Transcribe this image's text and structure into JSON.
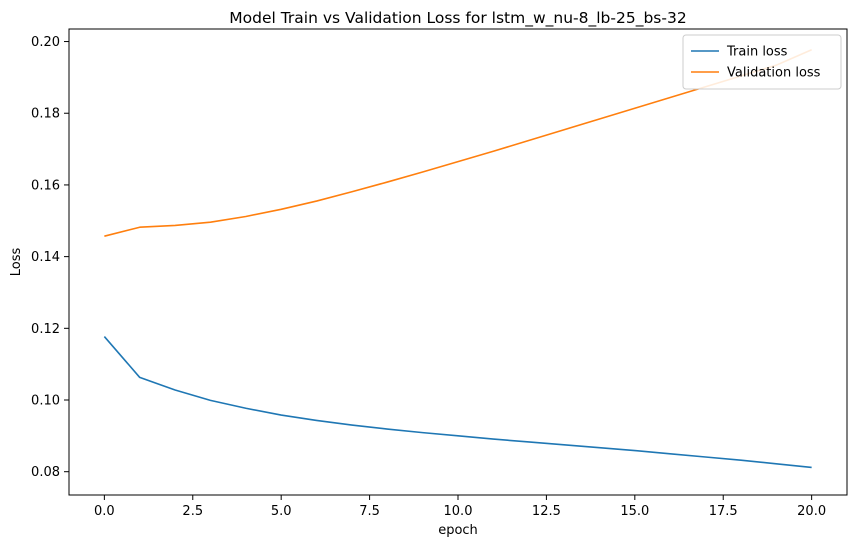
{
  "chart_data": {
    "type": "line",
    "title": "Model Train vs Validation Loss for lstm_w_nu-8_lb-25_bs-32",
    "xlabel": "epoch",
    "ylabel": "Loss",
    "xlim": [
      -1.0,
      21.0
    ],
    "ylim": [
      0.0735,
      0.2035
    ],
    "xticks": [
      0.0,
      2.5,
      5.0,
      7.5,
      10.0,
      12.5,
      15.0,
      17.5,
      20.0
    ],
    "xtick_labels": [
      "0.0",
      "2.5",
      "5.0",
      "7.5",
      "10.0",
      "12.5",
      "15.0",
      "17.5",
      "20.0"
    ],
    "yticks": [
      0.08,
      0.1,
      0.12,
      0.14,
      0.16,
      0.18,
      0.2
    ],
    "ytick_labels": [
      "0.08",
      "0.10",
      "0.12",
      "0.14",
      "0.16",
      "0.18",
      "0.20"
    ],
    "grid": false,
    "legend": "top-right",
    "x": [
      0,
      1,
      2,
      3,
      4,
      5,
      6,
      7,
      8,
      9,
      10,
      11,
      12,
      13,
      14,
      15,
      16,
      17,
      18,
      19,
      20
    ],
    "series": [
      {
        "name": "Train loss",
        "color": "#1f77b4",
        "values": [
          0.1177,
          0.1063,
          0.1028,
          0.0999,
          0.0977,
          0.0958,
          0.0943,
          0.093,
          0.0919,
          0.0909,
          0.09,
          0.0891,
          0.0883,
          0.0875,
          0.0867,
          0.0859,
          0.085,
          0.0841,
          0.0832,
          0.0822,
          0.0812
        ]
      },
      {
        "name": "Validation loss",
        "color": "#ff7f0e",
        "values": [
          0.1457,
          0.1482,
          0.1487,
          0.1496,
          0.1512,
          0.1532,
          0.1555,
          0.1581,
          0.1608,
          0.1636,
          0.1665,
          0.1694,
          0.1724,
          0.1754,
          0.1784,
          0.1814,
          0.1844,
          0.1874,
          0.1904,
          0.1934,
          0.1977
        ]
      }
    ]
  }
}
